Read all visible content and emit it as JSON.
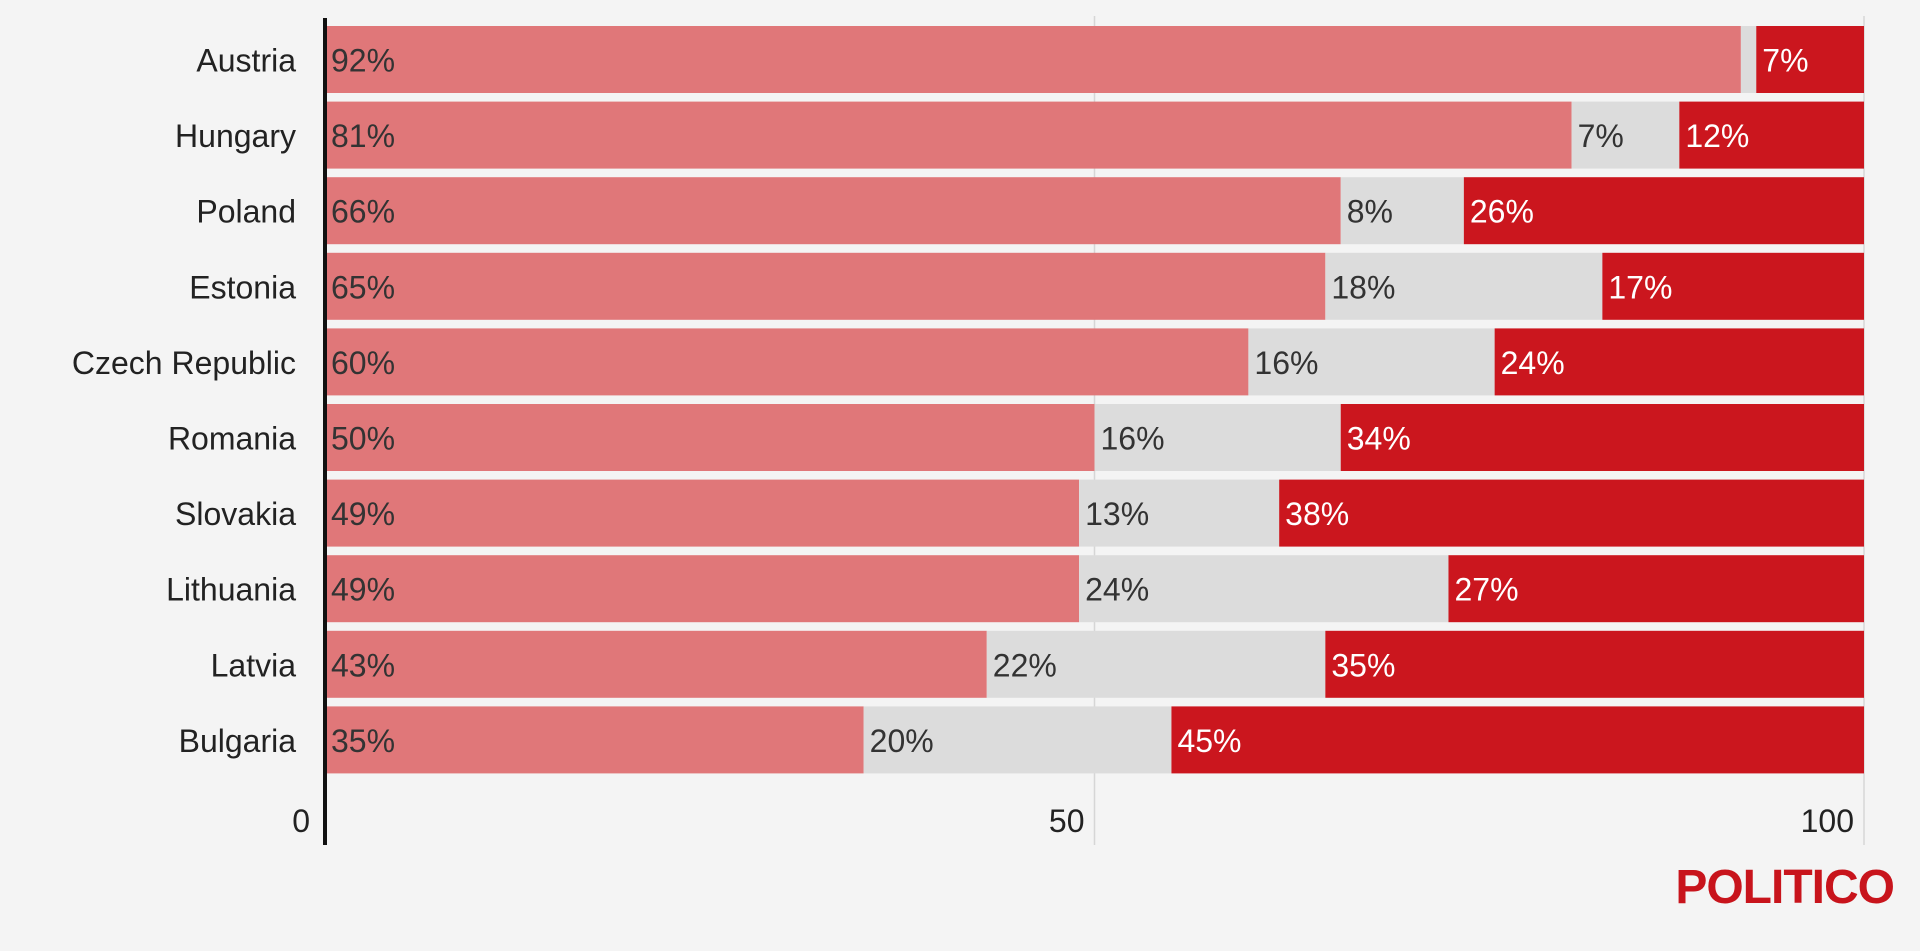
{
  "chart_data": {
    "type": "bar",
    "orientation": "horizontal",
    "stacked": true,
    "categories": [
      "Austria",
      "Hungary",
      "Poland",
      "Estonia",
      "Czech Republic",
      "Romania",
      "Slovakia",
      "Lithuania",
      "Latvia",
      "Bulgaria"
    ],
    "series": [
      {
        "values": [
          92,
          81,
          66,
          65,
          60,
          50,
          49,
          49,
          43,
          35
        ],
        "color": "#e07779"
      },
      {
        "values": [
          1,
          7,
          8,
          18,
          16,
          16,
          13,
          24,
          22,
          20
        ],
        "color": "#dcdcdc"
      },
      {
        "values": [
          7,
          12,
          26,
          17,
          24,
          34,
          38,
          27,
          35,
          45
        ],
        "color": "#cb161e"
      }
    ],
    "labels": [
      [
        "92%",
        "81%",
        "66%",
        "65%",
        "60%",
        "50%",
        "49%",
        "49%",
        "43%",
        "35%"
      ],
      [
        "",
        "7%",
        "8%",
        "18%",
        "16%",
        "16%",
        "13%",
        "24%",
        "22%",
        "20%"
      ],
      [
        "7%",
        "12%",
        "26%",
        "17%",
        "24%",
        "34%",
        "38%",
        "27%",
        "35%",
        "45%"
      ]
    ],
    "label_colors": [
      "#333333",
      "#333333",
      "#ffffff"
    ],
    "xlim": [
      0,
      100
    ],
    "xticks": [
      "0",
      "50",
      "100"
    ],
    "grid": true,
    "title": "",
    "xlabel": "",
    "ylabel": ""
  },
  "brand": {
    "logo_text": "POLITICO",
    "color": "#c8141c"
  }
}
